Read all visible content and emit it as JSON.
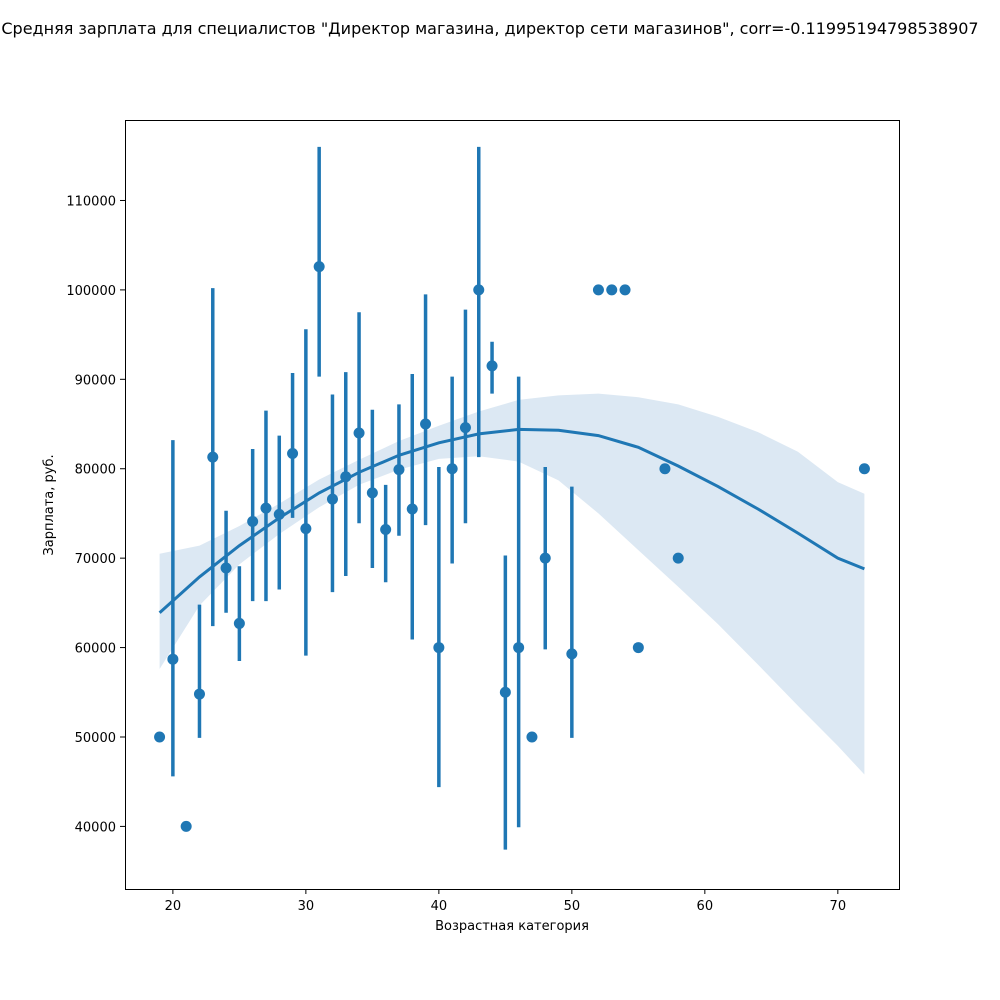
{
  "chart_data": {
    "type": "scatter",
    "title": "Средняя зарплата для специалистов \"Директор магазина, директор сети магазинов\", corr=-0.11995194798538907",
    "xlabel": "Возрастная категория",
    "ylabel": "Зарплата, руб.",
    "xlim": [
      16.4,
      74.6
    ],
    "ylim": [
      33000,
      119000
    ],
    "xticks": [
      20,
      30,
      40,
      50,
      60,
      70
    ],
    "yticks": [
      40000,
      50000,
      60000,
      70000,
      80000,
      90000,
      100000,
      110000
    ],
    "grid": false,
    "color": "#1f77b4",
    "band_color": "#dce8f3",
    "points": [
      {
        "x": 19,
        "y": 50000
      },
      {
        "x": 20,
        "y": 58700,
        "lo": 45600,
        "hi": 83200
      },
      {
        "x": 21,
        "y": 40000
      },
      {
        "x": 22,
        "y": 54800,
        "lo": 49900,
        "hi": 64800
      },
      {
        "x": 23,
        "y": 81300,
        "lo": 62400,
        "hi": 100200
      },
      {
        "x": 24,
        "y": 68900,
        "lo": 63900,
        "hi": 75300
      },
      {
        "x": 25,
        "y": 62700,
        "lo": 58500,
        "hi": 69100
      },
      {
        "x": 26,
        "y": 74100,
        "lo": 65200,
        "hi": 82200
      },
      {
        "x": 27,
        "y": 75600,
        "lo": 65200,
        "hi": 86500
      },
      {
        "x": 28,
        "y": 74900,
        "lo": 66500,
        "hi": 83700
      },
      {
        "x": 29,
        "y": 81700,
        "lo": 74500,
        "hi": 90700
      },
      {
        "x": 30,
        "y": 73300,
        "lo": 59100,
        "hi": 95600
      },
      {
        "x": 31,
        "y": 102600,
        "lo": 90300,
        "hi": 116000
      },
      {
        "x": 32,
        "y": 76600,
        "lo": 66200,
        "hi": 88300
      },
      {
        "x": 33,
        "y": 79100,
        "lo": 68000,
        "hi": 90800
      },
      {
        "x": 34,
        "y": 84000,
        "lo": 73900,
        "hi": 97500
      },
      {
        "x": 35,
        "y": 77300,
        "lo": 68900,
        "hi": 86600
      },
      {
        "x": 36,
        "y": 73200,
        "lo": 67300,
        "hi": 78200
      },
      {
        "x": 37,
        "y": 79900,
        "lo": 72500,
        "hi": 87200
      },
      {
        "x": 38,
        "y": 75500,
        "lo": 60900,
        "hi": 90600
      },
      {
        "x": 39,
        "y": 85000,
        "lo": 73700,
        "hi": 99500
      },
      {
        "x": 40,
        "y": 60000,
        "lo": 44400,
        "hi": 80200
      },
      {
        "x": 41,
        "y": 80000,
        "lo": 69400,
        "hi": 90300
      },
      {
        "x": 42,
        "y": 84600,
        "lo": 73900,
        "hi": 97800
      },
      {
        "x": 43,
        "y": 100000,
        "lo": 81300,
        "hi": 116000
      },
      {
        "x": 44,
        "y": 91500,
        "lo": 88400,
        "hi": 94200
      },
      {
        "x": 45,
        "y": 55000,
        "lo": 37400,
        "hi": 70300
      },
      {
        "x": 46,
        "y": 60000,
        "lo": 39900,
        "hi": 90300
      },
      {
        "x": 47,
        "y": 50000
      },
      {
        "x": 48,
        "y": 70000,
        "lo": 59800,
        "hi": 80200
      },
      {
        "x": 50,
        "y": 59300,
        "lo": 49900,
        "hi": 78000
      },
      {
        "x": 52,
        "y": 100000
      },
      {
        "x": 53,
        "y": 100000
      },
      {
        "x": 54,
        "y": 100000
      },
      {
        "x": 55,
        "y": 60000
      },
      {
        "x": 57,
        "y": 80000
      },
      {
        "x": 58,
        "y": 70000
      },
      {
        "x": 72,
        "y": 80000
      }
    ],
    "fit": {
      "type": "quadratic",
      "x": [
        19,
        22,
        25,
        28,
        31,
        34,
        37,
        40,
        43,
        46,
        49,
        52,
        55,
        58,
        61,
        64,
        67,
        70,
        72
      ],
      "y": [
        63900,
        67900,
        71400,
        74500,
        77300,
        79600,
        81500,
        82900,
        83900,
        84400,
        84300,
        83700,
        82400,
        80300,
        78000,
        75500,
        72800,
        70000,
        68800
      ],
      "band_lo": [
        57600,
        64700,
        69300,
        72700,
        75700,
        78200,
        79900,
        81100,
        81400,
        80800,
        78700,
        75000,
        70900,
        66800,
        62600,
        58100,
        53500,
        49000,
        45800
      ],
      "band_hi": [
        70500,
        71400,
        73600,
        76100,
        78800,
        81000,
        83100,
        84800,
        86400,
        87700,
        88200,
        88400,
        88000,
        87200,
        85800,
        84100,
        81900,
        78500,
        77200
      ]
    }
  }
}
